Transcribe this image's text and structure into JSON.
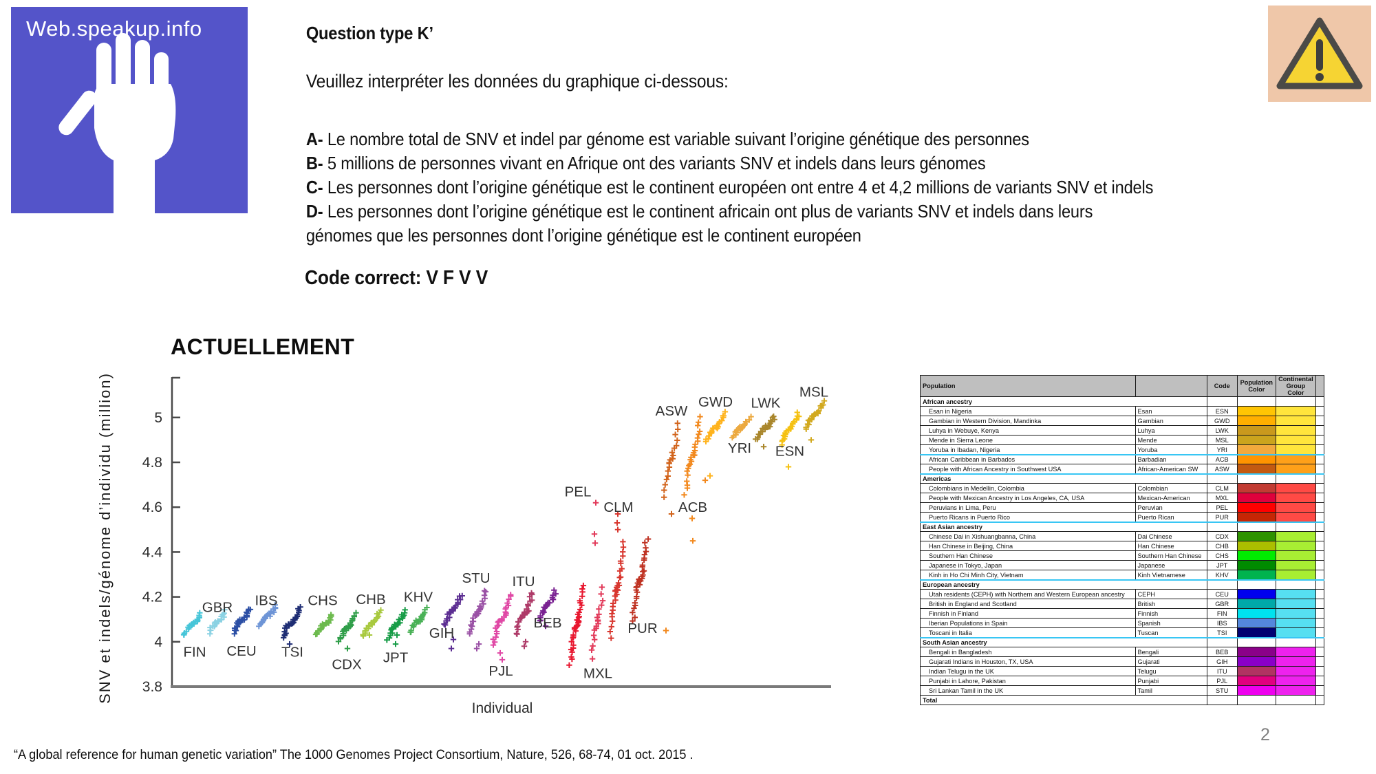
{
  "slide": {
    "page_number": "2",
    "citation": "“A global reference for human genetic variation” The 1000 Genomes Project Consortium, Nature, 526, 68-74, 01 oct. 2015 ."
  },
  "logo": {
    "text": "Web.speakup.info",
    "bg_color": "#5454C9"
  },
  "warning": {
    "bg_color": "#EFC7A9",
    "triangle_fill": "#F6D433",
    "triangle_stroke": "#4B4A47",
    "mark_color": "#3F3F3D"
  },
  "question": {
    "title": "Question type K’",
    "prompt": "Veuillez interpréter les données du graphique ci-dessous:",
    "options": [
      {
        "letter": "A-",
        "text": "Le nombre total de SNV et indel par génome est variable suivant l’origine génétique des personnes"
      },
      {
        "letter": "B-",
        "text": "5 millions de personnes vivant en Afrique ont des variants SNV et indels dans leurs génomes"
      },
      {
        "letter": "C-",
        "text": "Les personnes dont l’origine génétique est le continent européen ont entre 4 et 4,2 millions de variants SNV et indels"
      },
      {
        "letter": "D-",
        "text": "Les personnes dont l’origine génétique est le continent africain ont plus de variants SNV et indels  dans leurs\ngénomes que les personnes dont l’origine génétique est le continent européen"
      }
    ],
    "answer_label": "Code correct: V F V V"
  },
  "chart_data": {
    "type": "scatter",
    "title": "ACTUELLEMENT",
    "xlabel": "Individual",
    "ylabel": "SNV et indels/génome d’individu (million)",
    "ylim": [
      3.8,
      5.18
    ],
    "yticks": [
      3.8,
      4,
      4.2,
      4.4,
      4.6,
      4.8,
      5
    ],
    "marker": "+",
    "grid": false,
    "populations": [
      {
        "code": "FIN",
        "x": 150,
        "lo": 4.03,
        "hi": 4.13,
        "n": 22,
        "w": 12,
        "color": "#46C5D8",
        "label_v": 3.955,
        "label_dx": 3,
        "outliers": []
      },
      {
        "code": "GBR",
        "x": 186,
        "lo": 4.04,
        "hi": 4.14,
        "n": 22,
        "w": 12,
        "color": "#8BD2E3",
        "label_v": 4.155,
        "label_dx": 0,
        "outliers": []
      },
      {
        "code": "CEU",
        "x": 221,
        "lo": 4.04,
        "hi": 4.15,
        "n": 24,
        "w": 12,
        "color": "#2C4FA5",
        "label_v": 3.96,
        "label_dx": 0,
        "outliers": []
      },
      {
        "code": "IBS",
        "x": 259,
        "lo": 4.07,
        "hi": 4.16,
        "n": 22,
        "w": 12,
        "color": "#6D94D6",
        "label_v": 4.185,
        "label_dx": -2,
        "outliers": []
      },
      {
        "code": "TSI",
        "x": 293,
        "lo": 4.02,
        "hi": 4.15,
        "n": 26,
        "w": 12,
        "color": "#1E2D74",
        "label_v": 3.955,
        "label_dx": 2,
        "outliers": [
          [
            3.99,
            -2
          ]
        ]
      },
      {
        "code": "CHS",
        "x": 341,
        "lo": 4.03,
        "hi": 4.12,
        "n": 22,
        "w": 12,
        "color": "#6CBA4D",
        "label_v": 4.185,
        "label_dx": -2,
        "outliers": []
      },
      {
        "code": "CDX",
        "x": 376,
        "lo": 4.0,
        "hi": 4.13,
        "n": 22,
        "w": 12,
        "color": "#2F9E49",
        "label_v": 3.9,
        "label_dx": -2,
        "outliers": [
          [
            3.97,
            -1
          ]
        ]
      },
      {
        "code": "CHB",
        "x": 410,
        "lo": 4.02,
        "hi": 4.14,
        "n": 22,
        "w": 12,
        "color": "#A8C93E",
        "label_v": 4.19,
        "label_dx": -1,
        "outliers": [
          [
            4.03,
            -3
          ]
        ]
      },
      {
        "code": "JPT",
        "x": 446,
        "lo": 4.01,
        "hi": 4.14,
        "n": 24,
        "w": 12,
        "color": "#179C47",
        "label_v": 3.93,
        "label_dx": -1,
        "outliers": [
          [
            3.99,
            -1
          ],
          [
            4.03,
            1
          ]
        ]
      },
      {
        "code": "KHV",
        "x": 478,
        "lo": 4.04,
        "hi": 4.15,
        "n": 22,
        "w": 12,
        "color": "#49B156",
        "label_v": 4.2,
        "label_dx": 0,
        "outliers": []
      },
      {
        "code": "GIH",
        "x": 528,
        "lo": 4.07,
        "hi": 4.21,
        "n": 24,
        "w": 12,
        "color": "#5C2E92",
        "label_v": 4.04,
        "label_dx": -16,
        "outliers": [
          [
            3.97,
            -2
          ],
          [
            4.01,
            1
          ]
        ]
      },
      {
        "code": "STU",
        "x": 564,
        "lo": 4.03,
        "hi": 4.23,
        "n": 26,
        "w": 12,
        "color": "#9A51A5",
        "label_v": 4.285,
        "label_dx": -2,
        "outliers": [
          [
            3.97,
            -1
          ],
          [
            3.99,
            2
          ]
        ]
      },
      {
        "code": "PJL",
        "x": 599,
        "lo": 3.99,
        "hi": 4.21,
        "n": 28,
        "w": 12,
        "color": "#E048A5",
        "label_v": 3.87,
        "label_dx": -1,
        "outliers": [
          [
            3.95,
            -2
          ],
          [
            3.92,
            1
          ]
        ]
      },
      {
        "code": "ITU",
        "x": 632,
        "lo": 4.03,
        "hi": 4.22,
        "n": 26,
        "w": 12,
        "color": "#AE3A68",
        "label_v": 4.27,
        "label_dx": -1,
        "outliers": [
          [
            3.98,
            0
          ],
          [
            4.0,
            2
          ]
        ]
      },
      {
        "code": "BEB",
        "x": 665,
        "lo": 4.09,
        "hi": 4.23,
        "n": 22,
        "w": 12,
        "color": "#7A2292",
        "label_v": 4.085,
        "label_dx": 1,
        "outliers": [
          [
            4.07,
            -2
          ]
        ]
      },
      {
        "code": "MXL",
        "x": 708,
        "lo": 3.9,
        "hi": 4.25,
        "n": 34,
        "w": 9,
        "color": "#E8172F",
        "label_v": 3.86,
        "label_dx": 31,
        "outliers": []
      },
      {
        "code": "PEL",
        "x": 738,
        "lo": 3.93,
        "hi": 4.24,
        "n": 18,
        "w": 8,
        "color": "#E23A5A",
        "label_v": 4.67,
        "label_dx": -28,
        "outliers": [
          [
            4.44,
            -3
          ],
          [
            4.48,
            -4
          ],
          [
            4.62,
            -2
          ]
        ]
      },
      {
        "code": "CLM",
        "x": 767,
        "lo": 4.02,
        "hi": 4.45,
        "n": 30,
        "w": 10,
        "color": "#D8362E",
        "label_v": 4.6,
        "label_dx": 2,
        "outliers": [
          [
            4.5,
            1
          ],
          [
            4.53,
            0
          ],
          [
            4.57,
            1
          ]
        ]
      },
      {
        "code": "PUR",
        "x": 800,
        "lo": 4.09,
        "hi": 4.46,
        "n": 32,
        "w": 10,
        "color": "#BF3222",
        "label_v": 4.06,
        "label_dx": 4,
        "outliers": []
      },
      {
        "code": "ASW",
        "x": 845,
        "lo": 4.65,
        "hi": 4.97,
        "n": 20,
        "w": 11,
        "color": "#D2641C",
        "label_v": 5.03,
        "label_dx": 1,
        "outliers": [
          [
            4.57,
            1
          ]
        ]
      },
      {
        "code": "ACB",
        "x": 877,
        "lo": 4.66,
        "hi": 5.0,
        "n": 26,
        "w": 11,
        "color": "#F2891E",
        "label_v": 4.6,
        "label_dx": 0,
        "outliers": [
          [
            4.05,
            -39
          ],
          [
            4.45,
            0
          ],
          [
            4.55,
            -1
          ],
          [
            4.72,
            18
          ]
        ]
      },
      {
        "code": "GWD",
        "x": 910,
        "lo": 4.89,
        "hi": 5.02,
        "n": 24,
        "w": 13,
        "color": "#FFB31C",
        "label_v": 5.07,
        "label_dx": 0,
        "outliers": [
          [
            4.74,
            -8
          ]
        ]
      },
      {
        "code": "YRI",
        "x": 948,
        "lo": 4.91,
        "hi": 5.0,
        "n": 22,
        "w": 13,
        "color": "#ECA93F",
        "label_v": 4.865,
        "label_dx": -3,
        "outliers": []
      },
      {
        "code": "LWK",
        "x": 983,
        "lo": 4.9,
        "hi": 5.01,
        "n": 22,
        "w": 13,
        "color": "#A9862B",
        "label_v": 5.065,
        "label_dx": 0,
        "outliers": [
          [
            4.87,
            -3
          ]
        ]
      },
      {
        "code": "ESN",
        "x": 1018,
        "lo": 4.88,
        "hi": 5.02,
        "n": 24,
        "w": 13,
        "color": "#F5C112",
        "label_v": 4.85,
        "label_dx": 0,
        "outliers": [
          [
            4.78,
            -2
          ]
        ]
      },
      {
        "code": "MSL",
        "x": 1053,
        "lo": 4.95,
        "hi": 5.07,
        "n": 24,
        "w": 13,
        "color": "#D2A91F",
        "label_v": 5.115,
        "label_dx": 0,
        "outliers": [
          [
            4.9,
            -4
          ]
        ]
      }
    ]
  },
  "table": {
    "headers": [
      "Population",
      "",
      "Code",
      "Population Color",
      "Continental Group Color"
    ],
    "sections": [
      {
        "name": "African ancestry",
        "rows": [
          {
            "population": "Esan in Nigeria",
            "name": "Esan",
            "code": "ESN",
            "pop_color": "#FFC503",
            "group_color": "#FFE53C"
          },
          {
            "population": "Gambian in Western Division, Mandinka",
            "name": "Gambian",
            "code": "GWD",
            "pop_color": "#FFAF00",
            "group_color": "#FFE53C"
          },
          {
            "population": "Luhya in Webuye, Kenya",
            "name": "Luhya",
            "code": "LWK",
            "pop_color": "#C9991D",
            "group_color": "#FFE53C"
          },
          {
            "population": "Mende in Sierra Leone",
            "name": "Mende",
            "code": "MSL",
            "pop_color": "#CBA41D",
            "group_color": "#FFE53C"
          },
          {
            "population": "Yoruba in Ibadan, Nigeria",
            "name": "Yoruba",
            "code": "YRI",
            "pop_color": "#F2A93C",
            "group_color": "#FFE53C",
            "cyan_after": true
          },
          {
            "population": "African Caribbean in Barbados",
            "name": "Barbadian",
            "code": "ACB",
            "pop_color": "#FF9400",
            "group_color": "#FFA019"
          },
          {
            "population": "People with African Ancestry in Southwest USA",
            "name": "African-American SW",
            "code": "ASW",
            "pop_color": "#C35A11",
            "group_color": "#FFA019",
            "cyan_after": true
          }
        ]
      },
      {
        "name": "Americas",
        "rows": [
          {
            "population": "Colombians in Medellin, Colombia",
            "name": "Colombian",
            "code": "CLM",
            "pop_color": "#C23B33",
            "group_color": "#FF4A45"
          },
          {
            "population": "People with Mexican Ancestry in Los Angeles, CA, USA",
            "name": "Mexican-American",
            "code": "MXL",
            "pop_color": "#DF013C",
            "group_color": "#FF4A45"
          },
          {
            "population": "Peruvians in Lima, Peru",
            "name": "Peruvian",
            "code": "PEL",
            "pop_color": "#FF0000",
            "group_color": "#FF4A45"
          },
          {
            "population": "Puerto Ricans in Puerto Rico",
            "name": "Puerto Rican",
            "code": "PUR",
            "pop_color": "#C62605",
            "group_color": "#FF4A45",
            "cyan_after": true
          }
        ]
      },
      {
        "name": "East Asian ancestry",
        "rows": [
          {
            "population": "Chinese Dai in Xishuangbanna, China",
            "name": "Dai Chinese",
            "code": "CDX",
            "pop_color": "#2E9300",
            "group_color": "#A8EE33"
          },
          {
            "population": "Han Chinese in Beijing, China",
            "name": "Han Chinese",
            "code": "CHB",
            "pop_color": "#ABBE00",
            "group_color": "#A8EE33"
          },
          {
            "population": "Southern Han Chinese",
            "name": "Southern Han Chinese",
            "code": "CHS",
            "pop_color": "#00EC00",
            "group_color": "#A8EE33"
          },
          {
            "population": "Japanese in Tokyo, Japan",
            "name": "Japanese",
            "code": "JPT",
            "pop_color": "#008B00",
            "group_color": "#A8EE33"
          },
          {
            "population": "Kinh in Ho Chi Minh City, Vietnam",
            "name": "Kinh Vietnamese",
            "code": "KHV",
            "pop_color": "#00B34F",
            "group_color": "#A8EE33",
            "cyan_after": true
          }
        ]
      },
      {
        "name": "European ancestry",
        "rows": [
          {
            "population": "Utah residents (CEPH) with Northern and Western European ancestry",
            "name": "CEPH",
            "code": "CEU",
            "pop_color": "#0000EF",
            "group_color": "#56DFF1"
          },
          {
            "population": "British in England and Scotland",
            "name": "British",
            "code": "GBR",
            "pop_color": "#00A9A9",
            "group_color": "#56DFF1"
          },
          {
            "population": "Finnish in Finland",
            "name": "Finnish",
            "code": "FIN",
            "pop_color": "#00E2EF",
            "group_color": "#56DFF1"
          },
          {
            "population": "Iberian Populations in Spain",
            "name": "Spanish",
            "code": "IBS",
            "pop_color": "#5487DC",
            "group_color": "#56DFF1"
          },
          {
            "population": "Toscani in Italia",
            "name": "Tuscan",
            "code": "TSI",
            "pop_color": "#010172",
            "group_color": "#56DFF1",
            "cyan_after": true
          }
        ]
      },
      {
        "name": "South Asian ancestry",
        "rows": [
          {
            "population": "Bengali in Bangladesh",
            "name": "Bengali",
            "code": "BEB",
            "pop_color": "#8A0189",
            "group_color": "#EE22EE"
          },
          {
            "population": "Gujarati Indians in Houston, TX, USA",
            "name": "Gujarati",
            "code": "GIH",
            "pop_color": "#8A00C8",
            "group_color": "#EE22EE"
          },
          {
            "population": "Indian Telugu in the UK",
            "name": "Telugu",
            "code": "ITU",
            "pop_color": "#B13362",
            "group_color": "#EE22EE"
          },
          {
            "population": "Punjabi in Lahore, Pakistan",
            "name": "Punjabi",
            "code": "PJL",
            "pop_color": "#E1007F",
            "group_color": "#EE22EE"
          },
          {
            "population": "Sri Lankan Tamil in the UK",
            "name": "Tamil",
            "code": "STU",
            "pop_color": "#EE00EE",
            "group_color": "#EE22EE"
          }
        ]
      }
    ],
    "total_label": "Total"
  }
}
